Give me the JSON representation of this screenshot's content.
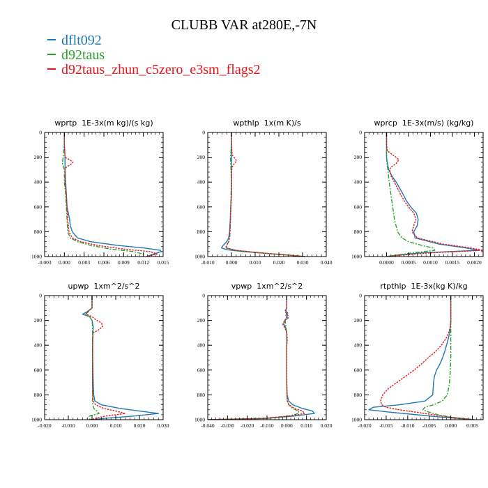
{
  "figure": {
    "title": "CLUBB VAR at280E,-7N"
  },
  "legend": [
    {
      "name": "dflt092",
      "color": "#1f77b4",
      "dash": "solid"
    },
    {
      "name": "d92taus",
      "color": "#2ca02c",
      "dash": "dashdot"
    },
    {
      "name": "d92taus_zhun_c5zero_e3sm_flags2",
      "color": "#e8161b",
      "dash": "dotted"
    }
  ],
  "chart_data": [
    {
      "type": "line",
      "title": "wprtp  1E-3x(m kg)/(s kg)",
      "xlim": [
        -0.003,
        0.015
      ],
      "ylim": [
        0,
        1000
      ],
      "xticks": [
        -0.003,
        0.0,
        0.003,
        0.006,
        0.009,
        0.012,
        0.015
      ],
      "xtick_labels": [
        "-0.003",
        "0.000",
        "0.003",
        "0.006",
        "0.009",
        "0.012",
        "0.015"
      ],
      "yticks": [
        0,
        200,
        400,
        600,
        800,
        1000
      ],
      "ytick_labels": [
        "0",
        "200",
        "400",
        "600",
        "800",
        "1000"
      ],
      "series": [
        {
          "name": "dflt092",
          "y": [
            0,
            100,
            200,
            300,
            400,
            500,
            600,
            650,
            700,
            750,
            800,
            850,
            880,
            910,
            930,
            950,
            960,
            980,
            1000
          ],
          "values": [
            0,
            0,
            0.0001,
            0.0001,
            0.0002,
            0.0003,
            0.0004,
            0.0006,
            0.0008,
            0.0009,
            0.0012,
            0.002,
            0.004,
            0.008,
            0.012,
            0.0146,
            0.0147,
            0.0135,
            0.0125
          ]
        },
        {
          "name": "d92taus",
          "y": [
            0,
            100,
            200,
            250,
            300,
            400,
            500,
            600,
            700,
            800,
            850,
            880,
            910,
            940,
            960,
            980,
            1000
          ],
          "values": [
            0,
            0,
            -0.0002,
            -0.0003,
            0,
            0,
            0.0002,
            0.0003,
            0.0004,
            0.0005,
            0.0009,
            0.002,
            0.004,
            0.007,
            0.0105,
            0.012,
            0.0118
          ]
        },
        {
          "name": "d92taus_zhun_c5zero_e3sm_flags2",
          "y": [
            0,
            100,
            200,
            220,
            240,
            260,
            280,
            300,
            400,
            500,
            600,
            700,
            800,
            850,
            880,
            910,
            940,
            960,
            980,
            1000
          ],
          "values": [
            0,
            0,
            0.0001,
            0.0008,
            0.0013,
            0.0009,
            0.0003,
            0.0001,
            0.0001,
            0.0003,
            0.0004,
            0.0005,
            0.0007,
            0.0012,
            0.0025,
            0.005,
            0.009,
            0.013,
            0.0141,
            0.0124
          ]
        }
      ]
    },
    {
      "type": "line",
      "title": "wpthlp  1x(m K)/s",
      "xlim": [
        -0.01,
        0.04
      ],
      "ylim": [
        0,
        1000
      ],
      "xticks": [
        -0.01,
        0.0,
        0.01,
        0.02,
        0.03,
        0.04
      ],
      "xtick_labels": [
        "-0.010",
        "0.000",
        "0.010",
        "0.020",
        "0.030",
        "0.040"
      ],
      "yticks": [
        0,
        200,
        400,
        600,
        800,
        1000
      ],
      "ytick_labels": [
        "0",
        "200",
        "400",
        "600",
        "800",
        "1000"
      ],
      "series": [
        {
          "name": "dflt092",
          "y": [
            0,
            100,
            200,
            300,
            400,
            500,
            600,
            700,
            800,
            850,
            880,
            910,
            930,
            945,
            960,
            975,
            990,
            1000
          ],
          "values": [
            0,
            0,
            0,
            0,
            0,
            0,
            -0.0003,
            -0.0005,
            -0.0008,
            -0.0012,
            -0.002,
            -0.0035,
            -0.0042,
            -0.002,
            0.005,
            0.015,
            0.025,
            0.031
          ]
        },
        {
          "name": "d92taus",
          "y": [
            0,
            100,
            200,
            300,
            400,
            500,
            600,
            700,
            800,
            850,
            880,
            910,
            930,
            950,
            970,
            990,
            1000
          ],
          "values": [
            0,
            0,
            -0.0004,
            -0.0002,
            0,
            -0.0002,
            -0.0003,
            -0.0004,
            -0.0006,
            -0.0008,
            -0.0012,
            -0.002,
            -0.0022,
            0.002,
            0.012,
            0.025,
            0.031
          ]
        },
        {
          "name": "d92taus_zhun_c5zero_e3sm_flags2",
          "y": [
            0,
            100,
            180,
            210,
            230,
            250,
            280,
            350,
            400,
            500,
            600,
            700,
            800,
            850,
            880,
            910,
            930,
            950,
            970,
            990,
            1000
          ],
          "values": [
            0,
            0,
            0.0003,
            0.0015,
            0.0022,
            0.0012,
            0.0002,
            0,
            0,
            0,
            -0.0002,
            -0.0004,
            -0.0006,
            -0.0008,
            -0.0012,
            -0.002,
            -0.0025,
            0.002,
            0.012,
            0.025,
            0.031
          ]
        }
      ]
    },
    {
      "type": "line",
      "title": "wprcp  1E-3x(m/s) (kg/kg)",
      "xlim": [
        -0.0005,
        0.0022
      ],
      "ylim": [
        0,
        1000
      ],
      "xticks": [
        0.0,
        0.0005,
        0.001,
        0.0015,
        0.002
      ],
      "xtick_labels": [
        "0.0000",
        "0.0005",
        "0.0010",
        "0.0015",
        "0.0020"
      ],
      "yticks": [
        0,
        200,
        400,
        600,
        800,
        1000
      ],
      "ytick_labels": [
        "0",
        "200",
        "400",
        "600",
        "800",
        "1000"
      ],
      "series": [
        {
          "name": "dflt092",
          "y": [
            0,
            200,
            250,
            300,
            350,
            400,
            450,
            500,
            550,
            600,
            650,
            700,
            750,
            800,
            850,
            900,
            930,
            950,
            970,
            990,
            1000
          ],
          "values": [
            0,
            0,
            2e-05,
            5e-05,
            0.00012,
            0.00022,
            0.0003,
            0.00038,
            0.00045,
            0.00055,
            0.00068,
            0.00072,
            0.0007,
            0.00062,
            0.00065,
            0.0012,
            0.0018,
            0.0021,
            0.0008,
            0.0002,
            0
          ]
        },
        {
          "name": "d92taus",
          "y": [
            0,
            200,
            250,
            300,
            400,
            500,
            600,
            700,
            800,
            850,
            880,
            910,
            930,
            950,
            970,
            990,
            1000
          ],
          "values": [
            0,
            0,
            1e-05,
            3e-05,
            6e-05,
            0.0001,
            0.00014,
            0.00018,
            0.00025,
            0.00035,
            0.0005,
            0.0008,
            0.00105,
            0.0011,
            0.0006,
            0.0002,
            0
          ]
        },
        {
          "name": "d92taus_zhun_c5zero_e3sm_flags2",
          "y": [
            0,
            100,
            150,
            190,
            220,
            250,
            280,
            300,
            350,
            400,
            450,
            500,
            550,
            600,
            650,
            700,
            750,
            800,
            850,
            900,
            930,
            950,
            970,
            990,
            1000
          ],
          "values": [
            0,
            0,
            2e-05,
            0.00018,
            0.00028,
            0.00022,
            0.0001,
            7e-05,
            0.0001,
            0.00018,
            0.00025,
            0.00032,
            0.0004,
            0.0005,
            0.00062,
            0.00067,
            0.00062,
            0.00058,
            0.0007,
            0.0013,
            0.0019,
            0.0022,
            0.001,
            0.0003,
            0
          ]
        }
      ]
    },
    {
      "type": "line",
      "title": "upwp  1xm^2/s^2",
      "xlim": [
        -0.02,
        0.03
      ],
      "ylim": [
        0,
        1000
      ],
      "xticks": [
        -0.02,
        -0.01,
        0.0,
        0.01,
        0.02,
        0.03
      ],
      "xtick_labels": [
        "-0.020",
        "-0.010",
        "0.000",
        "0.010",
        "0.020",
        "0.030"
      ],
      "yticks": [
        0,
        200,
        400,
        600,
        800,
        1000
      ],
      "ytick_labels": [
        "0",
        "200",
        "400",
        "600",
        "800",
        "1000"
      ],
      "series": [
        {
          "name": "dflt092",
          "y": [
            0,
            100,
            130,
            150,
            170,
            200,
            250,
            300,
            400,
            500,
            600,
            700,
            800,
            850,
            880,
            910,
            930,
            950,
            970,
            990,
            1000
          ],
          "values": [
            0,
            0,
            -0.002,
            -0.004,
            -0.001,
            0,
            0.0005,
            0.0004,
            0.0003,
            0.0003,
            0.0004,
            0.0005,
            0.0007,
            0.0012,
            0.004,
            0.012,
            0.02,
            0.028,
            0.018,
            0.005,
            0
          ]
        },
        {
          "name": "d92taus",
          "y": [
            0,
            100,
            130,
            150,
            170,
            200,
            250,
            300,
            400,
            500,
            600,
            700,
            800,
            850,
            880,
            910,
            930,
            950,
            970,
            990,
            1000
          ],
          "values": [
            0,
            0,
            -0.0015,
            -0.003,
            -0.001,
            0,
            0.0002,
            0.0002,
            0.0002,
            0.0002,
            0.0002,
            0.0002,
            0.0002,
            0.0002,
            0.0003,
            0.0008,
            0.002,
            0.003,
            -0.001,
            -0.002,
            0
          ]
        },
        {
          "name": "d92taus_zhun_c5zero_e3sm_flags2",
          "y": [
            0,
            100,
            130,
            150,
            170,
            200,
            220,
            250,
            280,
            300,
            350,
            400,
            500,
            600,
            700,
            800,
            850,
            880,
            910,
            930,
            950,
            970,
            990,
            1000
          ],
          "values": [
            0,
            0,
            -0.002,
            -0.0025,
            0,
            0.002,
            0.004,
            0.0045,
            0.0025,
            0.0005,
            0.0002,
            0.0002,
            0.0002,
            0.0002,
            0.0002,
            0.0003,
            0.0005,
            0.0015,
            0.005,
            0.01,
            0.014,
            0.006,
            0.001,
            0
          ]
        }
      ]
    },
    {
      "type": "line",
      "title": "vpwp  1xm^2/s^2",
      "xlim": [
        -0.04,
        0.02
      ],
      "ylim": [
        0,
        1000
      ],
      "xticks": [
        -0.04,
        -0.03,
        -0.02,
        -0.01,
        0.0,
        0.01,
        0.02
      ],
      "xtick_labels": [
        "-0.040",
        "-0.030",
        "-0.020",
        "-0.010",
        "0.000",
        "0.010",
        "0.020"
      ],
      "yticks": [
        0,
        200,
        400,
        600,
        800,
        1000
      ],
      "ytick_labels": [
        "0",
        "200",
        "400",
        "600",
        "800",
        "1000"
      ],
      "series": [
        {
          "name": "dflt092",
          "y": [
            0,
            100,
            120,
            140,
            160,
            180,
            200,
            230,
            260,
            300,
            400,
            500,
            600,
            700,
            800,
            850,
            880,
            910,
            930,
            950,
            970,
            990,
            1000
          ],
          "values": [
            0,
            0,
            -0.0008,
            0.0005,
            -0.0005,
            0.0008,
            -0.001,
            -0.0015,
            -0.0005,
            0,
            0,
            0,
            0,
            0,
            0.0002,
            0.001,
            0.003,
            0.008,
            0.013,
            0.014,
            0.004,
            -0.01,
            -0.04
          ]
        },
        {
          "name": "d92taus",
          "y": [
            0,
            100,
            130,
            160,
            200,
            250,
            300,
            400,
            500,
            600,
            700,
            800,
            850,
            880,
            910,
            930,
            950,
            970,
            990,
            1000
          ],
          "values": [
            0,
            0,
            -0.0006,
            0.0004,
            -0.0008,
            -0.0004,
            0,
            0,
            0,
            0,
            0,
            0.0001,
            0.0003,
            0.001,
            0.003,
            0.006,
            0.006,
            0.001,
            -0.012,
            -0.04
          ]
        },
        {
          "name": "d92taus_zhun_c5zero_e3sm_flags2",
          "y": [
            0,
            100,
            130,
            160,
            200,
            230,
            260,
            300,
            350,
            400,
            500,
            600,
            700,
            800,
            850,
            880,
            910,
            930,
            950,
            970,
            990,
            1000
          ],
          "values": [
            0,
            0,
            -0.0008,
            0.0006,
            -0.001,
            -0.002,
            -0.001,
            0,
            0.0003,
            0,
            0,
            0,
            0,
            0.0001,
            0.0003,
            0.0012,
            0.004,
            0.008,
            0.009,
            0.002,
            -0.012,
            -0.04
          ]
        }
      ]
    },
    {
      "type": "line",
      "title": "rtpthlp  1E-3x(kg K)/kg",
      "xlim": [
        -0.02,
        0.0075
      ],
      "ylim": [
        0,
        1000
      ],
      "xticks": [
        -0.02,
        -0.015,
        -0.01,
        -0.005,
        0.0,
        0.005
      ],
      "xtick_labels": [
        "-0.020",
        "-0.015",
        "-0.010",
        "-0.005",
        "0.000",
        "0.005"
      ],
      "yticks": [
        0,
        200,
        400,
        600,
        800,
        1000
      ],
      "ytick_labels": [
        "0",
        "200",
        "400",
        "600",
        "800",
        "1000"
      ],
      "series": [
        {
          "name": "dflt092",
          "y": [
            0,
            100,
            200,
            250,
            300,
            350,
            400,
            450,
            500,
            550,
            600,
            650,
            700,
            750,
            800,
            850,
            880,
            900,
            920,
            940,
            960,
            980,
            1000
          ],
          "values": [
            0,
            0,
            0,
            -0.0001,
            -0.0003,
            -0.0006,
            -0.001,
            -0.0014,
            -0.0019,
            -0.0025,
            -0.0033,
            -0.0038,
            -0.004,
            -0.0041,
            -0.0042,
            -0.006,
            -0.012,
            -0.018,
            -0.019,
            -0.014,
            -0.008,
            -0.002,
            0.0055
          ]
        },
        {
          "name": "d92taus",
          "y": [
            0,
            100,
            200,
            300,
            400,
            500,
            600,
            700,
            800,
            850,
            880,
            900,
            920,
            940,
            960,
            980,
            1000
          ],
          "values": [
            0,
            0,
            0,
            0,
            0,
            0,
            -0.0001,
            -0.0003,
            -0.0008,
            -0.002,
            -0.004,
            -0.006,
            -0.0065,
            -0.005,
            -0.003,
            0,
            0.0055
          ]
        },
        {
          "name": "d92taus_zhun_c5zero_e3sm_flags2",
          "y": [
            0,
            100,
            200,
            250,
            300,
            350,
            400,
            450,
            500,
            550,
            600,
            650,
            700,
            750,
            800,
            850,
            880,
            900,
            920,
            940,
            960,
            980,
            1000
          ],
          "values": [
            0,
            0,
            0,
            -0.0001,
            -0.0005,
            -0.0012,
            -0.0022,
            -0.0035,
            -0.0052,
            -0.0068,
            -0.0085,
            -0.0105,
            -0.0125,
            -0.0145,
            -0.0158,
            -0.0163,
            -0.016,
            -0.015,
            -0.012,
            -0.008,
            -0.004,
            -0.0005,
            0.0055
          ]
        }
      ]
    }
  ]
}
